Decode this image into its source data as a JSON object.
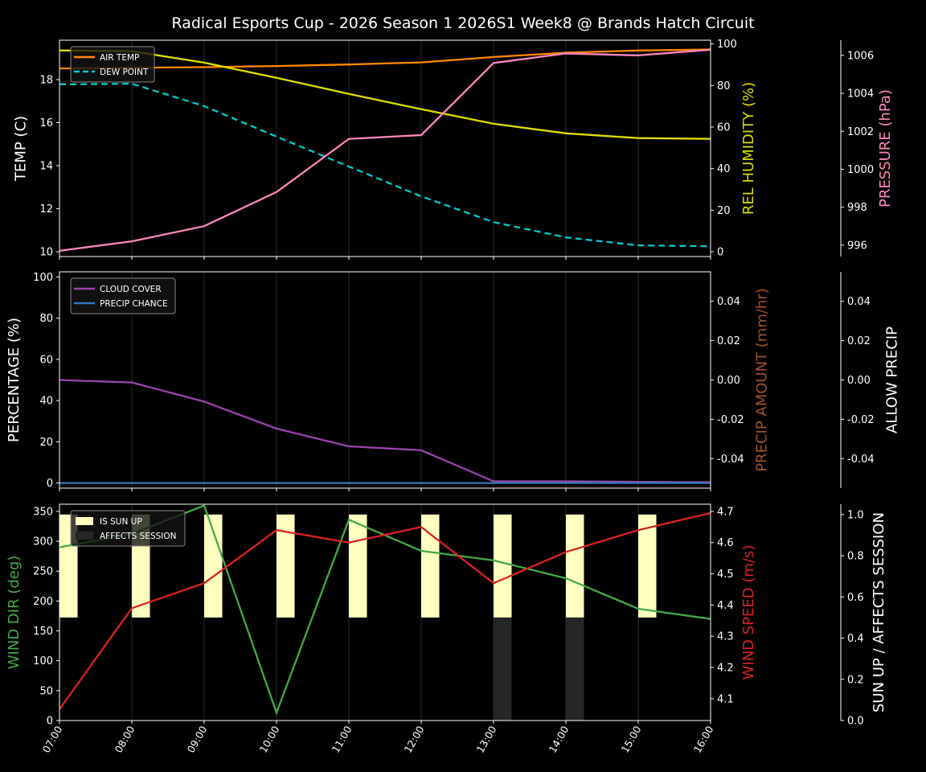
{
  "title": "Radical Esports Cup - 2026 Season 1 2026S1 Week8 @ Brands Hatch Circuit",
  "chart_data": [
    {
      "type": "line",
      "x": [
        "07:00",
        "08:00",
        "09:00",
        "10:00",
        "11:00",
        "12:00",
        "13:00",
        "14:00",
        "15:00",
        "16:00"
      ],
      "grid": "vertical",
      "legend": "upper-left",
      "axes": [
        {
          "label": "TEMP (C)",
          "side": "left",
          "color": "#ffffff",
          "ylim": [
            9.78,
            19.83
          ],
          "ticks": [
            10,
            12,
            14,
            16,
            18
          ]
        },
        {
          "label": "REL HUMIDITY (%)",
          "side": "right",
          "color": "#dddd00",
          "ylim": [
            -2.3,
            101.8
          ],
          "ticks": [
            0,
            20,
            40,
            60,
            80,
            100
          ]
        },
        {
          "label": "PRESSURE (hPa)",
          "side": "right-outer",
          "color": "#ff88bb",
          "ylim": [
            995.4,
            1006.8
          ],
          "ticks": [
            996,
            998,
            1000,
            1002,
            1004,
            1006
          ]
        }
      ],
      "series": [
        {
          "name": "AIR TEMP",
          "axis": 0,
          "color": "#ff8800",
          "dash": false,
          "legend": true,
          "values": [
            18.52,
            18.55,
            18.58,
            18.63,
            18.7,
            18.8,
            19.05,
            19.25,
            19.35,
            19.4
          ]
        },
        {
          "name": "DEW POINT",
          "axis": 0,
          "color": "#00cccc",
          "dash": true,
          "legend": true,
          "values": [
            17.78,
            17.81,
            16.77,
            15.35,
            13.96,
            12.58,
            11.38,
            10.67,
            10.3,
            10.26
          ]
        },
        {
          "axis": 1,
          "color": "#dddd00",
          "dash": false,
          "legend": false,
          "values": [
            96.9,
            96.5,
            91,
            83.7,
            76,
            68.6,
            61.6,
            57,
            54.7,
            54.3
          ]
        },
        {
          "axis": 2,
          "color": "#ff88bb",
          "dash": false,
          "legend": false,
          "values": [
            995.7,
            996.2,
            997.0,
            998.8,
            1001.6,
            1001.8,
            1005.6,
            1006.1,
            1006.0,
            1006.3
          ]
        }
      ]
    },
    {
      "type": "line",
      "x": [
        "07:00",
        "08:00",
        "09:00",
        "10:00",
        "11:00",
        "12:00",
        "13:00",
        "14:00",
        "15:00",
        "16:00"
      ],
      "grid": "vertical",
      "legend": "upper-left",
      "axes": [
        {
          "label": "PERCENTAGE (%)",
          "side": "left",
          "color": "#ffffff",
          "ylim": [
            -2.5,
            102.5
          ],
          "ticks": [
            0,
            20,
            40,
            60,
            80,
            100
          ]
        },
        {
          "label": "PRECIP AMOUNT (mm/hr)",
          "side": "right",
          "color": "#a0522d",
          "ylim": [
            -0.055,
            0.055
          ],
          "ticks": [
            -0.04,
            -0.02,
            0.0,
            0.02,
            0.04
          ]
        },
        {
          "label": "ALLOW PRECIP",
          "side": "right-outer",
          "color": "#ffffff",
          "ylim": [
            -0.055,
            0.055
          ],
          "ticks": [
            -0.04,
            -0.02,
            0.0,
            0.02,
            0.04
          ]
        }
      ],
      "series": [
        {
          "name": "CLOUD COVER",
          "axis": 0,
          "color": "#9944aa",
          "dash": false,
          "legend": true,
          "values": [
            50,
            48.8,
            39.5,
            26.4,
            17.8,
            15.9,
            0.8,
            0.8,
            0.6,
            0.4
          ]
        },
        {
          "name": "PRECIP CHANCE",
          "axis": 0,
          "color": "#3377bb",
          "dash": false,
          "legend": true,
          "values": [
            0,
            0,
            0,
            0,
            0,
            0,
            0,
            0,
            0,
            0
          ]
        }
      ]
    },
    {
      "type": "line",
      "x": [
        "07:00",
        "08:00",
        "09:00",
        "10:00",
        "11:00",
        "12:00",
        "13:00",
        "14:00",
        "15:00",
        "16:00"
      ],
      "grid": "vertical",
      "legend": "upper-left",
      "axes": [
        {
          "label": "WIND DIR (deg)",
          "side": "left",
          "color": "#44aa44",
          "ylim": [
            0,
            362
          ],
          "ticks": [
            0,
            50,
            100,
            150,
            200,
            250,
            300,
            350
          ]
        },
        {
          "label": "WIND SPEED (m/s)",
          "side": "right",
          "color": "#dd2222",
          "ylim": [
            4.03,
            4.723
          ],
          "ticks": [
            4.1,
            4.2,
            4.3,
            4.4,
            4.5,
            4.6,
            4.7
          ]
        },
        {
          "label": "SUN UP / AFFECTS SESSION",
          "side": "right-outer",
          "color": "#ffffff",
          "ylim": [
            0,
            1.05
          ],
          "ticks": [
            0.0,
            0.2,
            0.4,
            0.6,
            0.8,
            1.0
          ]
        }
      ],
      "bars": [
        {
          "name": "IS SUN UP",
          "axis": 2,
          "color": "#ffffc0",
          "values": [
            1,
            1,
            1,
            1,
            1,
            1,
            1,
            1,
            1,
            0
          ]
        },
        {
          "name": "AFFECTS SESSION",
          "axis": 2,
          "color": "#262626",
          "values": [
            0,
            0,
            0,
            0,
            0,
            0,
            1,
            1,
            0,
            0
          ]
        }
      ],
      "series": [
        {
          "axis": 0,
          "color": "#44aa44",
          "dash": false,
          "legend": false,
          "values": [
            290,
            312,
            360,
            13,
            336,
            284,
            268,
            238,
            187,
            170
          ]
        },
        {
          "axis": 1,
          "color": "#dd2222",
          "dash": false,
          "legend": false,
          "values": [
            4.066,
            4.39,
            4.47,
            4.64,
            4.6,
            4.65,
            4.47,
            4.57,
            4.64,
            4.695
          ]
        }
      ]
    }
  ]
}
